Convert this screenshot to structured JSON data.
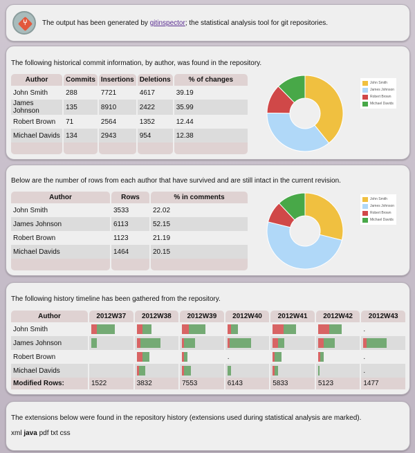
{
  "header": {
    "text_before": "The output has been generated by ",
    "link": "gitinspector",
    "text_after": "; the statistical analysis tool for git repositories."
  },
  "colors": {
    "john": "#f0c040",
    "james": "#b0d8f8",
    "robert": "#d04848",
    "michael": "#48a848",
    "removed": "#d86464",
    "added": "#74aa74"
  },
  "changes": {
    "intro": "The following historical commit information, by author, was found in the repository.",
    "columns": [
      "Author",
      "Commits",
      "Insertions",
      "Deletions",
      "% of changes"
    ],
    "rows": [
      [
        "John Smith",
        "288",
        "7721",
        "4617",
        "39.19"
      ],
      [
        "James Johnson",
        "135",
        "8910",
        "2422",
        "35.99"
      ],
      [
        "Robert Brown",
        "71",
        "2564",
        "1352",
        "12.44"
      ],
      [
        "Michael Davids",
        "134",
        "2943",
        "954",
        "12.38"
      ]
    ],
    "chart_data": {
      "type": "pie",
      "categories": [
        "John Smith",
        "James Johnson",
        "Robert Brown",
        "Michael Davids"
      ],
      "values": [
        39.19,
        35.99,
        12.44,
        12.38
      ],
      "legend": "right"
    }
  },
  "blame": {
    "intro": "Below are the number of rows from each author that have survived and are still intact in the current revision.",
    "columns": [
      "Author",
      "Rows",
      "% in comments"
    ],
    "rows": [
      [
        "John Smith",
        "3533",
        "22.02"
      ],
      [
        "James Johnson",
        "6113",
        "52.15"
      ],
      [
        "Robert Brown",
        "1123",
        "21.19"
      ],
      [
        "Michael Davids",
        "1464",
        "20.15"
      ]
    ],
    "chart_data": {
      "type": "pie",
      "categories": [
        "John Smith",
        "James Johnson",
        "Robert Brown",
        "Michael Davids"
      ],
      "values": [
        3533,
        6113,
        1123,
        1464
      ],
      "legend": "right"
    }
  },
  "timeline": {
    "intro": "The following history timeline has been gathered from the repository.",
    "author_header": "Author",
    "weeks": [
      "2012W37",
      "2012W38",
      "2012W39",
      "2012W40",
      "2012W41",
      "2012W42",
      "2012W43"
    ],
    "authors": [
      "John Smith",
      "James Johnson",
      "Robert Brown",
      "Michael Davids"
    ],
    "bars_note": "each cell: [removed%, added%] of full bar scale; null = empty, '.' = dot",
    "bars": [
      [
        [
          24,
          76
        ],
        [
          24,
          38
        ],
        [
          29,
          71
        ],
        [
          15,
          29
        ],
        [
          47,
          53
        ],
        [
          47,
          53
        ],
        "."
      ],
      [
        [
          0,
          24
        ],
        [
          15,
          85
        ],
        [
          9,
          47
        ],
        [
          9,
          91
        ],
        [
          24,
          24
        ],
        [
          24,
          47
        ],
        [
          15,
          85
        ]
      ],
      [
        null,
        [
          24,
          29
        ],
        [
          9,
          15
        ],
        ".",
        [
          9,
          29
        ],
        [
          9,
          15
        ],
        "."
      ],
      [
        null,
        [
          9,
          29
        ],
        [
          9,
          29
        ],
        [
          0,
          15
        ],
        [
          9,
          15
        ],
        [
          0,
          6
        ],
        "."
      ]
    ],
    "modified_label": "Modified Rows:",
    "modified": [
      "1522",
      "3832",
      "7553",
      "6143",
      "5833",
      "5123",
      "1477"
    ]
  },
  "extensions": {
    "intro": "The extensions below were found in the repository history (extensions used during statistical analysis are marked).",
    "list": [
      {
        "name": "xml",
        "used": false
      },
      {
        "name": "java",
        "used": true
      },
      {
        "name": "pdf",
        "used": false
      },
      {
        "name": "txt",
        "used": false
      },
      {
        "name": "css",
        "used": false
      }
    ]
  }
}
